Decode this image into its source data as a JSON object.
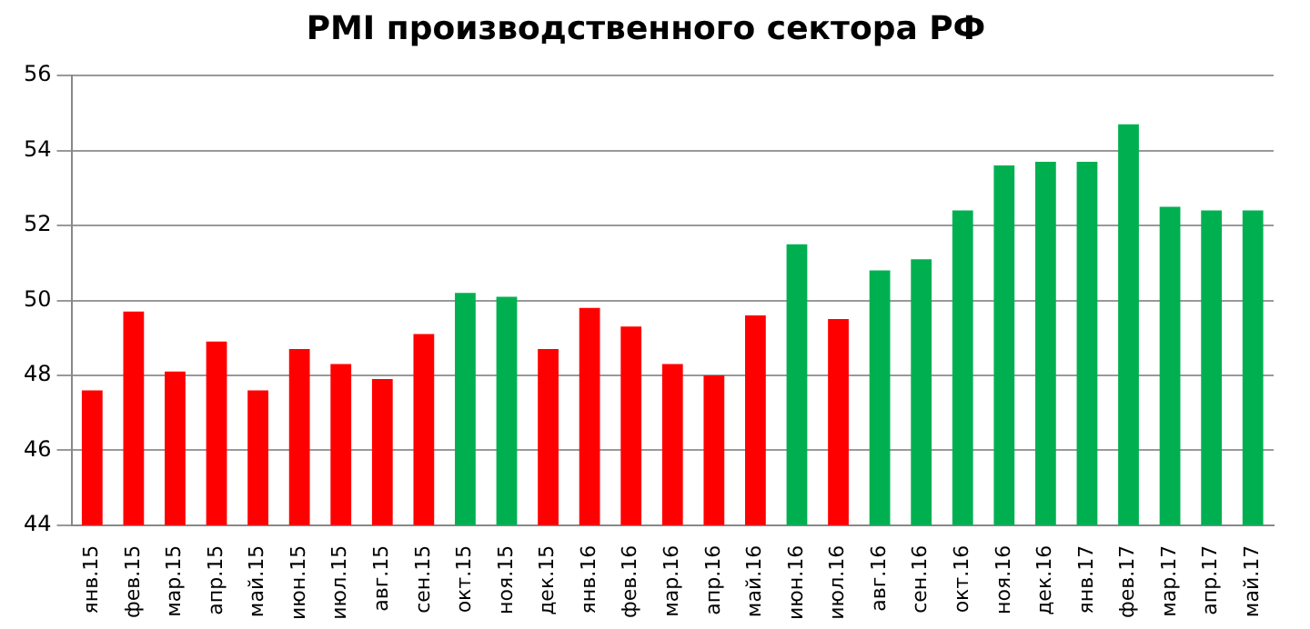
{
  "chart_data": {
    "type": "bar",
    "title": "PMI производственного сектора РФ",
    "categories": [
      "янв.15",
      "фев.15",
      "мар.15",
      "апр.15",
      "май.15",
      "июн.15",
      "июл.15",
      "авг.15",
      "сен.15",
      "окт.15",
      "ноя.15",
      "дек.15",
      "янв.16",
      "фев.16",
      "мар.16",
      "апр.16",
      "май.16",
      "июн.16",
      "июл.16",
      "авг.16",
      "сен.16",
      "окт.16",
      "ноя.16",
      "дек.16",
      "янв.17",
      "фев.17",
      "мар.17",
      "апр.17",
      "май.17"
    ],
    "values": [
      47.6,
      49.7,
      48.1,
      48.9,
      47.6,
      48.7,
      48.3,
      47.9,
      49.1,
      50.2,
      50.1,
      48.7,
      49.8,
      49.3,
      48.3,
      48.0,
      49.6,
      51.5,
      49.5,
      50.8,
      51.1,
      52.4,
      53.6,
      53.7,
      53.7,
      54.7,
      52.5,
      52.4,
      52.4
    ],
    "colors": [
      "#ff0000",
      "#ff0000",
      "#ff0000",
      "#ff0000",
      "#ff0000",
      "#ff0000",
      "#ff0000",
      "#ff0000",
      "#ff0000",
      "#00b050",
      "#00b050",
      "#ff0000",
      "#ff0000",
      "#ff0000",
      "#ff0000",
      "#ff0000",
      "#ff0000",
      "#00b050",
      "#ff0000",
      "#00b050",
      "#00b050",
      "#00b050",
      "#00b050",
      "#00b050",
      "#00b050",
      "#00b050",
      "#00b050",
      "#00b050",
      "#00b050"
    ],
    "ylim": [
      44,
      56
    ],
    "yticks": [
      44,
      46,
      48,
      50,
      52,
      54,
      56
    ],
    "grid": "y",
    "legend": false
  }
}
